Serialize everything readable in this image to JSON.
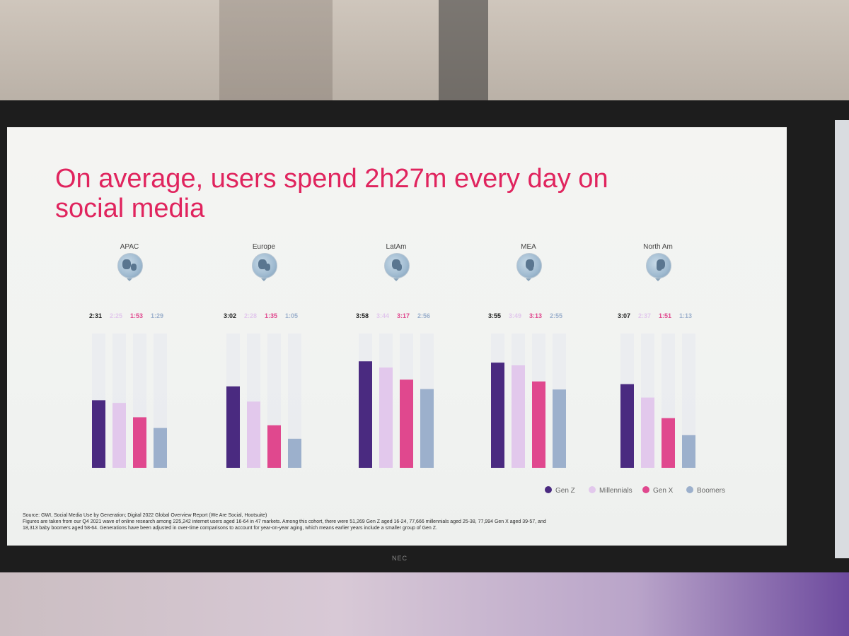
{
  "slide": {
    "title": "On average, users spend 2h27m every day on social media",
    "source_line1": "Source: GWI, Social Media Use by Generation; Digital 2022 Global Overview Report (We Are Social, Hootsuite)",
    "source_line2": "Figures are taken from our Q4 2021 wave of online research among 225,242 internet users aged 16-64 in 47 markets. Among this cohort, there were 51,269 Gen Z aged 16-24, 77,666 millennials aged 25-38, 77,994 Gen X aged 39-57, and",
    "source_line3": "18,313 baby boomers aged 58-64. Generations have been adjusted in over-time comparisons to account for year-on-year aging, which means earlier years include a smaller group of Gen Z."
  },
  "monitor": {
    "brand": "NEC"
  },
  "colors": {
    "genz": "#4a2a80",
    "millennials": "#e2c8ec",
    "genx": "#e0488e",
    "boomers": "#9cb0cc",
    "track": "#e6e8ee",
    "title": "#e0245e"
  },
  "icons": [
    "globe-asia-icon",
    "globe-europe-icon",
    "globe-americas-icon",
    "globe-africa-icon",
    "globe-north-america-icon"
  ],
  "chart_data": {
    "type": "bar",
    "title": "On average, users spend 2h27m every day on social media",
    "categories": [
      "APAC",
      "Europe",
      "LatAm",
      "MEA",
      "North Am"
    ],
    "unit": "hours:minutes per day",
    "ylim": [
      0,
      5
    ],
    "grid": false,
    "legend_position": "bottom-right",
    "series": [
      {
        "name": "Gen Z",
        "values": [
          "2:31",
          "3:02",
          "3:58",
          "3:55",
          "3:07"
        ],
        "values_minutes": [
          151,
          182,
          238,
          235,
          187
        ]
      },
      {
        "name": "Millennials",
        "values": [
          "2:25",
          "2:28",
          "3:44",
          "3:49",
          "2:37"
        ],
        "values_minutes": [
          145,
          148,
          224,
          229,
          157
        ]
      },
      {
        "name": "Gen X",
        "values": [
          "1:53",
          "1:35",
          "3:17",
          "3:13",
          "1:51"
        ],
        "values_minutes": [
          113,
          95,
          197,
          193,
          111
        ]
      },
      {
        "name": "Boomers",
        "values": [
          "1:29",
          "1:05",
          "2:56",
          "2:55",
          "1:13"
        ],
        "values_minutes": [
          89,
          65,
          176,
          175,
          73
        ]
      }
    ]
  }
}
